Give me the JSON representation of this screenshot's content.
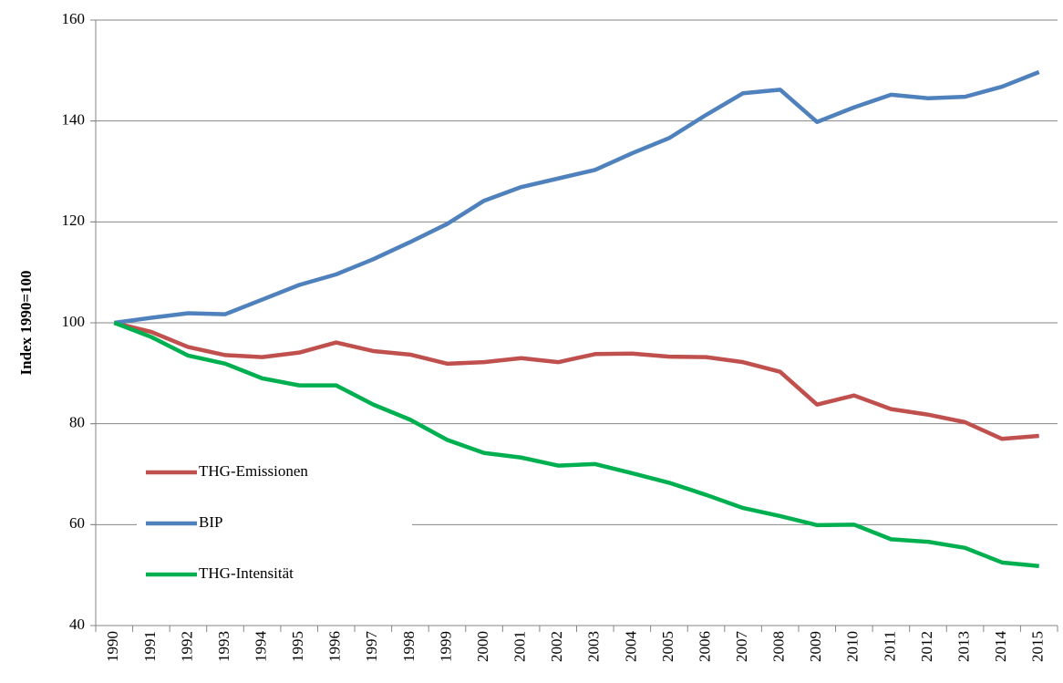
{
  "chart_data": {
    "type": "line",
    "y_label": "Index 1990=100",
    "categories": [
      "1990",
      "1991",
      "1992",
      "1993",
      "1994",
      "1995",
      "1996",
      "1997",
      "1998",
      "1999",
      "2000",
      "2001",
      "2002",
      "2003",
      "2004",
      "2005",
      "2006",
      "2007",
      "2008",
      "2009",
      "2010",
      "2011",
      "2012",
      "2013",
      "2014",
      "2015"
    ],
    "series": [
      {
        "name": "THG-Emissionen",
        "color": "#c0504d",
        "values": [
          100,
          98.2,
          95.2,
          93.6,
          93.2,
          94.1,
          96.1,
          94.4,
          93.7,
          91.9,
          92.2,
          93.0,
          92.2,
          93.8,
          93.9,
          93.3,
          93.2,
          92.2,
          90.3,
          83.8,
          85.6,
          82.9,
          81.8,
          80.3,
          77.0,
          77.6
        ]
      },
      {
        "name": "BIP",
        "color": "#4f81bd",
        "values": [
          100,
          101.0,
          101.9,
          101.7,
          104.6,
          107.5,
          109.6,
          112.6,
          116.0,
          119.6,
          124.2,
          126.9,
          128.6,
          130.3,
          133.6,
          136.6,
          141.2,
          145.5,
          146.2,
          139.8,
          142.7,
          145.2,
          144.5,
          144.8,
          146.8,
          149.7
        ]
      },
      {
        "name": "THG-Intensität",
        "color": "#00b050",
        "values": [
          100,
          97.2,
          93.5,
          91.9,
          89.0,
          87.6,
          87.6,
          83.8,
          80.8,
          76.8,
          74.2,
          73.3,
          71.7,
          72.0,
          70.2,
          68.3,
          65.9,
          63.3,
          61.7,
          59.9,
          60.0,
          57.1,
          56.6,
          55.4,
          52.5,
          51.8
        ]
      }
    ],
    "ylim": [
      40,
      160
    ],
    "yticks": [
      40,
      60,
      80,
      100,
      120,
      140,
      160
    ],
    "grid": true,
    "legend": "lower left"
  }
}
